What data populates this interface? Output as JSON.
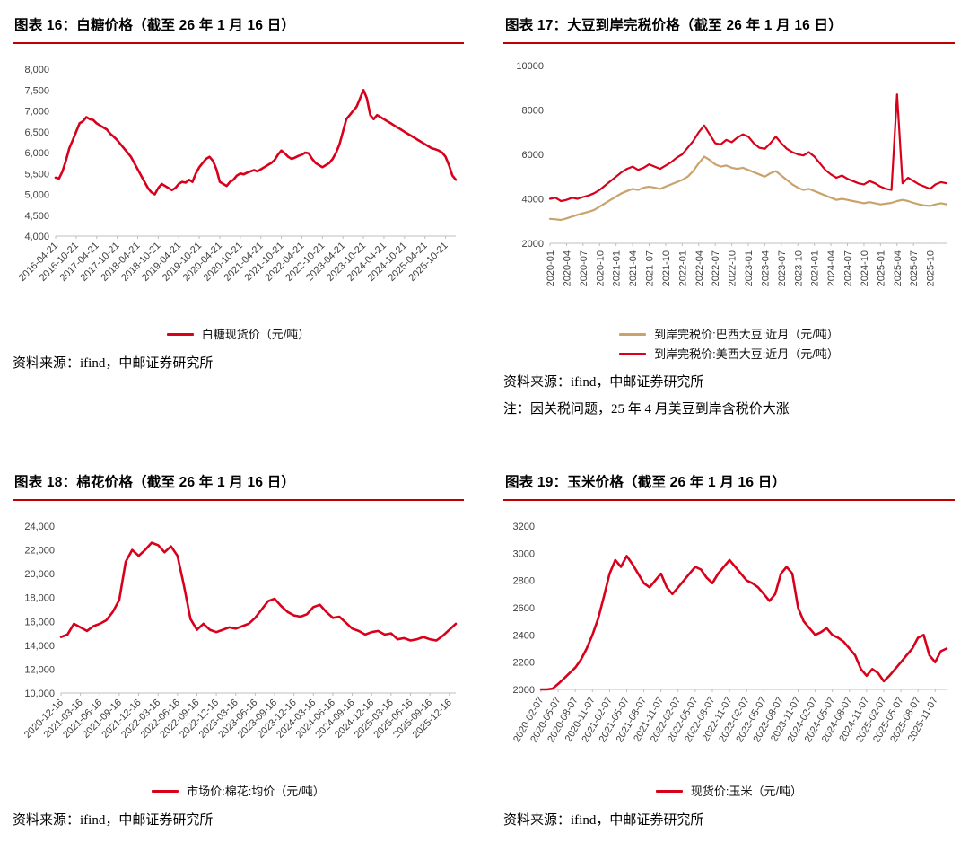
{
  "page": {
    "background": "#ffffff",
    "accent_rule_red": "#c00000",
    "line_red": "#d9001b",
    "line_tan": "#c9a36b",
    "axis_text_color": "#404040"
  },
  "chart_data": [
    {
      "type": "line",
      "title": "图表 16：白糖价格（截至 26 年 1 月 16 日）",
      "source": "资料来源：ifind，中邮证券研究所",
      "xlabel": "",
      "ylabel": "",
      "ylim": [
        4000,
        8000
      ],
      "layout": {
        "grid": false,
        "legend": "bottom",
        "x_label_rotation": -45
      },
      "y_ticks": [
        {
          "v": 8000,
          "label": "8,000"
        },
        {
          "v": 7500,
          "label": "7,500"
        },
        {
          "v": 7000,
          "label": "7,000"
        },
        {
          "v": 6500,
          "label": "6,500"
        },
        {
          "v": 6000,
          "label": "6,000"
        },
        {
          "v": 5500,
          "label": "5,500"
        },
        {
          "v": 5000,
          "label": "5,000"
        },
        {
          "v": 4500,
          "label": "4,500"
        },
        {
          "v": 4000,
          "label": "4,000"
        }
      ],
      "x_tick_labels": [
        "2016-04-21",
        "2016-10-21",
        "2017-04-21",
        "2017-10-21",
        "2018-04-21",
        "2018-10-21",
        "2019-04-21",
        "2019-10-21",
        "2020-04-21",
        "2020-10-21",
        "2021-04-21",
        "2021-10-21",
        "2022-04-21",
        "2022-10-21",
        "2023-04-21",
        "2023-10-21",
        "2024-04-21",
        "2024-10-21",
        "2025-04-21",
        "2025-10-21"
      ],
      "x_tick_indices": [
        0,
        6,
        12,
        18,
        24,
        30,
        36,
        42,
        48,
        54,
        60,
        66,
        72,
        78,
        84,
        90,
        96,
        102,
        108,
        114
      ],
      "series": [
        {
          "name": "白糖现货价（元/吨）",
          "color": "#d9001b",
          "values": [
            5400,
            5380,
            5550,
            5800,
            6100,
            6300,
            6500,
            6700,
            6750,
            6850,
            6800,
            6780,
            6700,
            6650,
            6600,
            6550,
            6450,
            6380,
            6300,
            6200,
            6100,
            6000,
            5900,
            5750,
            5600,
            5450,
            5300,
            5150,
            5050,
            5000,
            5150,
            5250,
            5200,
            5150,
            5100,
            5150,
            5250,
            5300,
            5280,
            5350,
            5300,
            5500,
            5650,
            5750,
            5850,
            5900,
            5800,
            5600,
            5300,
            5250,
            5200,
            5300,
            5350,
            5450,
            5500,
            5480,
            5520,
            5550,
            5580,
            5550,
            5600,
            5650,
            5700,
            5750,
            5820,
            5950,
            6050,
            5980,
            5900,
            5850,
            5880,
            5920,
            5950,
            6000,
            5980,
            5850,
            5750,
            5700,
            5650,
            5700,
            5750,
            5850,
            6000,
            6200,
            6500,
            6800,
            6900,
            7000,
            7100,
            7300,
            7500,
            7300,
            6900,
            6800,
            6900,
            6850,
            6800,
            6750,
            6700,
            6650,
            6600,
            6550,
            6500,
            6450,
            6400,
            6350,
            6300,
            6250,
            6200,
            6150,
            6100,
            6080,
            6050,
            6000,
            5900,
            5700,
            5450,
            5350
          ]
        }
      ]
    },
    {
      "type": "line",
      "title": "图表 17：大豆到岸完税价格（截至 26 年 1 月 16 日）",
      "source": "资料来源：ifind，中邮证券研究所",
      "note": "注：因关税问题，25 年 4 月美豆到岸含税价大涨",
      "xlabel": "",
      "ylabel": "",
      "ylim": [
        2000,
        10000
      ],
      "layout": {
        "grid": false,
        "legend": "bottom",
        "x_label_rotation": -90
      },
      "y_ticks": [
        {
          "v": 10000,
          "label": "10000"
        },
        {
          "v": 8000,
          "label": "8000"
        },
        {
          "v": 6000,
          "label": "6000"
        },
        {
          "v": 4000,
          "label": "4000"
        },
        {
          "v": 2000,
          "label": "2000"
        }
      ],
      "x_tick_labels": [
        "2020-01",
        "2020-04",
        "2020-07",
        "2020-10",
        "2021-01",
        "2021-04",
        "2021-07",
        "2021-10",
        "2022-01",
        "2022-04",
        "2022-07",
        "2022-10",
        "2023-01",
        "2023-04",
        "2023-07",
        "2023-10",
        "2024-01",
        "2024-04",
        "2024-07",
        "2024-10",
        "2025-01",
        "2025-04",
        "2025-07",
        "2025-10"
      ],
      "x_tick_indices": [
        0,
        3,
        6,
        9,
        12,
        15,
        18,
        21,
        24,
        27,
        30,
        33,
        36,
        39,
        42,
        45,
        48,
        51,
        54,
        57,
        60,
        63,
        66,
        69
      ],
      "series": [
        {
          "name": "到岸完税价:巴西大豆:近月（元/吨）",
          "color": "#c9a36b",
          "values": [
            3100,
            3080,
            3050,
            3120,
            3200,
            3280,
            3350,
            3420,
            3500,
            3650,
            3800,
            3950,
            4100,
            4250,
            4350,
            4450,
            4400,
            4500,
            4550,
            4500,
            4450,
            4550,
            4650,
            4750,
            4850,
            5000,
            5250,
            5600,
            5900,
            5750,
            5550,
            5450,
            5500,
            5400,
            5350,
            5400,
            5300,
            5200,
            5100,
            5000,
            5150,
            5250,
            5050,
            4850,
            4650,
            4500,
            4400,
            4450,
            4350,
            4250,
            4150,
            4050,
            3950,
            4000,
            3950,
            3900,
            3850,
            3800,
            3850,
            3800,
            3750,
            3780,
            3820,
            3900,
            3950,
            3900,
            3820,
            3750,
            3700,
            3680,
            3750,
            3800,
            3750
          ]
        },
        {
          "name": "到岸完税价:美西大豆:近月（元/吨）",
          "color": "#d9001b",
          "values": [
            4000,
            4050,
            3900,
            3950,
            4050,
            4000,
            4080,
            4150,
            4250,
            4400,
            4600,
            4800,
            5000,
            5200,
            5350,
            5450,
            5300,
            5400,
            5550,
            5450,
            5350,
            5500,
            5650,
            5850,
            6000,
            6300,
            6600,
            7000,
            7300,
            6900,
            6500,
            6450,
            6650,
            6550,
            6750,
            6900,
            6800,
            6500,
            6300,
            6250,
            6500,
            6800,
            6500,
            6250,
            6100,
            6000,
            5950,
            6100,
            5900,
            5600,
            5300,
            5100,
            4950,
            5050,
            4900,
            4800,
            4700,
            4650,
            4800,
            4700,
            4550,
            4450,
            4400,
            8700,
            4700,
            4950,
            4800,
            4650,
            4550,
            4450,
            4650,
            4750,
            4700
          ]
        }
      ]
    },
    {
      "type": "line",
      "title": "图表 18：棉花价格（截至 26 年 1 月 16 日）",
      "source": "资料来源：ifind，中邮证券研究所",
      "xlabel": "",
      "ylabel": "",
      "ylim": [
        10000,
        24000
      ],
      "layout": {
        "grid": false,
        "legend": "bottom",
        "x_label_rotation": -45
      },
      "y_ticks": [
        {
          "v": 24000,
          "label": "24,000"
        },
        {
          "v": 22000,
          "label": "22,000"
        },
        {
          "v": 20000,
          "label": "20,000"
        },
        {
          "v": 18000,
          "label": "18,000"
        },
        {
          "v": 16000,
          "label": "16,000"
        },
        {
          "v": 14000,
          "label": "14,000"
        },
        {
          "v": 12000,
          "label": "12,000"
        },
        {
          "v": 10000,
          "label": "10,000"
        }
      ],
      "x_tick_labels": [
        "2020-12-16",
        "2021-03-16",
        "2021-06-16",
        "2021-09-16",
        "2021-12-16",
        "2022-03-16",
        "2022-06-16",
        "2022-09-16",
        "2022-12-16",
        "2023-03-16",
        "2023-06-16",
        "2023-09-16",
        "2023-12-16",
        "2024-03-16",
        "2024-06-16",
        "2024-09-16",
        "2024-12-16",
        "2025-03-16",
        "2025-06-16",
        "2025-09-16",
        "2025-12-16"
      ],
      "x_tick_indices": [
        0,
        3,
        6,
        9,
        12,
        15,
        18,
        21,
        24,
        27,
        30,
        33,
        36,
        39,
        42,
        45,
        48,
        51,
        54,
        57,
        60
      ],
      "series": [
        {
          "name": "市场价:棉花:均价（元/吨）",
          "color": "#d9001b",
          "values": [
            14700,
            14900,
            15800,
            15500,
            15200,
            15600,
            15800,
            16100,
            16800,
            17800,
            21000,
            22000,
            21500,
            22000,
            22600,
            22400,
            21800,
            22300,
            21500,
            19000,
            16200,
            15300,
            15800,
            15300,
            15100,
            15300,
            15500,
            15400,
            15600,
            15800,
            16300,
            17000,
            17700,
            17900,
            17300,
            16800,
            16500,
            16400,
            16600,
            17200,
            17400,
            16800,
            16300,
            16400,
            15900,
            15400,
            15200,
            14900,
            15100,
            15200,
            14900,
            15000,
            14500,
            14600,
            14400,
            14500,
            14700,
            14500,
            14400,
            14800,
            15300,
            15800
          ]
        }
      ]
    },
    {
      "type": "line",
      "title": "图表 19：玉米价格（截至 26 年 1 月 16 日）",
      "source": "资料来源：ifind，中邮证券研究所",
      "xlabel": "",
      "ylabel": "",
      "ylim": [
        2000,
        3200
      ],
      "layout": {
        "grid": false,
        "legend": "bottom",
        "x_label_rotation": -60
      },
      "y_ticks": [
        {
          "v": 3200,
          "label": "3200"
        },
        {
          "v": 3000,
          "label": "3000"
        },
        {
          "v": 2800,
          "label": "2800"
        },
        {
          "v": 2600,
          "label": "2600"
        },
        {
          "v": 2400,
          "label": "2400"
        },
        {
          "v": 2200,
          "label": "2200"
        },
        {
          "v": 2000,
          "label": "2000"
        }
      ],
      "x_tick_labels": [
        "2020-02-07",
        "2020-05-07",
        "2020-08-07",
        "2020-11-07",
        "2021-02-07",
        "2021-05-07",
        "2021-08-07",
        "2021-11-07",
        "2022-02-07",
        "2022-05-07",
        "2022-08-07",
        "2022-11-07",
        "2023-02-07",
        "2023-05-07",
        "2023-08-07",
        "2023-11-07",
        "2024-02-07",
        "2024-05-07",
        "2024-08-07",
        "2024-11-07",
        "2025-02-07",
        "2025-05-07",
        "2025-08-07",
        "2025-11-07"
      ],
      "x_tick_indices": [
        0,
        3,
        6,
        9,
        12,
        15,
        18,
        21,
        24,
        27,
        30,
        33,
        36,
        39,
        42,
        45,
        48,
        51,
        54,
        57,
        60,
        63,
        66,
        69
      ],
      "series": [
        {
          "name": "现货价:玉米（元/吨）",
          "color": "#d9001b",
          "values": [
            2000,
            2000,
            2005,
            2040,
            2080,
            2120,
            2160,
            2220,
            2300,
            2400,
            2520,
            2680,
            2850,
            2950,
            2900,
            2980,
            2920,
            2850,
            2780,
            2750,
            2800,
            2850,
            2750,
            2700,
            2750,
            2800,
            2850,
            2900,
            2880,
            2820,
            2780,
            2850,
            2900,
            2950,
            2900,
            2850,
            2800,
            2780,
            2750,
            2700,
            2650,
            2700,
            2850,
            2900,
            2850,
            2600,
            2500,
            2450,
            2400,
            2420,
            2450,
            2400,
            2380,
            2350,
            2300,
            2250,
            2150,
            2100,
            2150,
            2120,
            2060,
            2100,
            2150,
            2200,
            2250,
            2300,
            2380,
            2400,
            2250,
            2200,
            2280,
            2300
          ]
        }
      ]
    }
  ]
}
